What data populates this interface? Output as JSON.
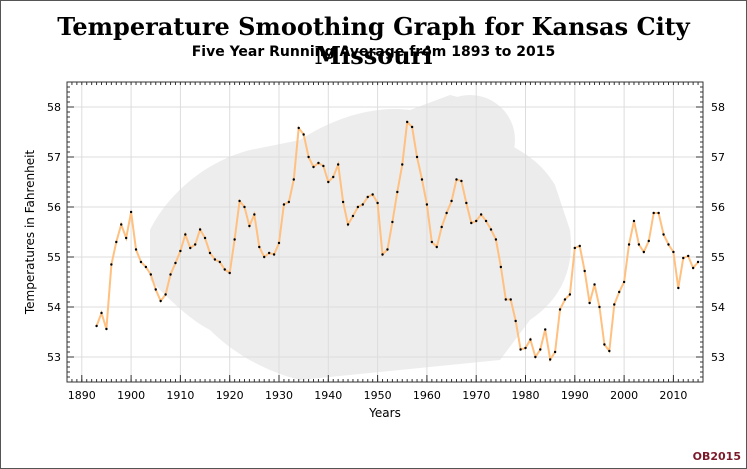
{
  "chart_data": {
    "type": "line",
    "title": "Temperature Smoothing Graph for Kansas City Missouri",
    "subtitle": "Five Year Running Average from 1893 to 2015",
    "xlabel": "Years",
    "ylabel": "Temperatures in Fahrenheit",
    "xlim": [
      1887,
      2016
    ],
    "ylim": [
      52.5,
      58.5
    ],
    "x_ticks": [
      1890,
      1900,
      1910,
      1920,
      1930,
      1940,
      1950,
      1960,
      1970,
      1980,
      1990,
      2000,
      2010
    ],
    "y_ticks": [
      53,
      54,
      55,
      56,
      57,
      58
    ],
    "grid": true,
    "line_color": "#ffc080",
    "marker_color": "#000000",
    "series": [
      {
        "x": [
          1893,
          1894,
          1895,
          1896,
          1897,
          1898,
          1899,
          1900,
          1901,
          1902,
          1903,
          1904,
          1905,
          1906,
          1907,
          1908,
          1909,
          1910,
          1911,
          1912,
          1913,
          1914,
          1915,
          1916,
          1917,
          1918,
          1919,
          1920,
          1921,
          1922,
          1923,
          1924,
          1925,
          1926,
          1927,
          1928,
          1929,
          1930,
          1931,
          1932,
          1933,
          1934,
          1935,
          1936,
          1937,
          1938,
          1939,
          1940,
          1941,
          1942,
          1943,
          1944,
          1945,
          1946,
          1947,
          1948,
          1949,
          1950,
          1951,
          1952,
          1953,
          1954,
          1955,
          1956,
          1957,
          1958,
          1959,
          1960,
          1961,
          1962,
          1963,
          1964,
          1965,
          1966,
          1967,
          1968,
          1969,
          1970,
          1971,
          1972,
          1973,
          1974,
          1975,
          1976,
          1977,
          1978,
          1979,
          1980,
          1981,
          1982,
          1983,
          1984,
          1985,
          1986,
          1987,
          1988,
          1989,
          1990,
          1991,
          1992,
          1993,
          1994,
          1995,
          1996,
          1997,
          1998,
          1999,
          2000,
          2001,
          2002,
          2003,
          2004,
          2005,
          2006,
          2007,
          2008,
          2009,
          2010,
          2011,
          2012,
          2013,
          2014,
          2015
        ],
        "values": [
          53.62,
          53.88,
          53.56,
          54.85,
          55.3,
          55.65,
          55.38,
          55.9,
          55.15,
          54.9,
          54.8,
          54.65,
          54.35,
          54.12,
          54.25,
          54.65,
          54.88,
          55.12,
          55.45,
          55.18,
          55.25,
          55.55,
          55.38,
          55.08,
          54.95,
          54.9,
          54.75,
          54.68,
          55.35,
          56.12,
          56.0,
          55.62,
          55.85,
          55.2,
          55.0,
          55.08,
          55.05,
          55.28,
          56.05,
          56.1,
          56.55,
          57.58,
          57.45,
          57.0,
          56.8,
          56.88,
          56.82,
          56.5,
          56.6,
          56.85,
          56.1,
          55.65,
          55.82,
          56.0,
          56.05,
          56.2,
          56.25,
          56.08,
          55.05,
          55.15,
          55.7,
          56.3,
          56.85,
          57.7,
          57.6,
          57.0,
          56.55,
          56.05,
          55.3,
          55.2,
          55.6,
          55.88,
          56.12,
          56.55,
          56.52,
          56.08,
          55.68,
          55.72,
          55.85,
          55.72,
          55.55,
          55.35,
          54.8,
          54.15,
          54.15,
          53.72,
          53.15,
          53.18,
          53.35,
          53.0,
          53.15,
          53.55,
          52.95,
          53.1,
          53.95,
          54.15,
          54.25,
          55.18,
          55.22,
          54.72,
          54.08,
          54.45,
          54.0,
          53.25,
          53.12,
          54.05,
          54.3,
          54.5,
          55.25,
          55.72,
          55.25,
          55.1,
          55.32,
          55.88,
          55.88,
          55.45,
          55.25,
          55.1,
          54.38,
          54.98,
          55.02,
          54.78,
          54.9
        ]
      }
    ]
  },
  "credit": "OB2015"
}
